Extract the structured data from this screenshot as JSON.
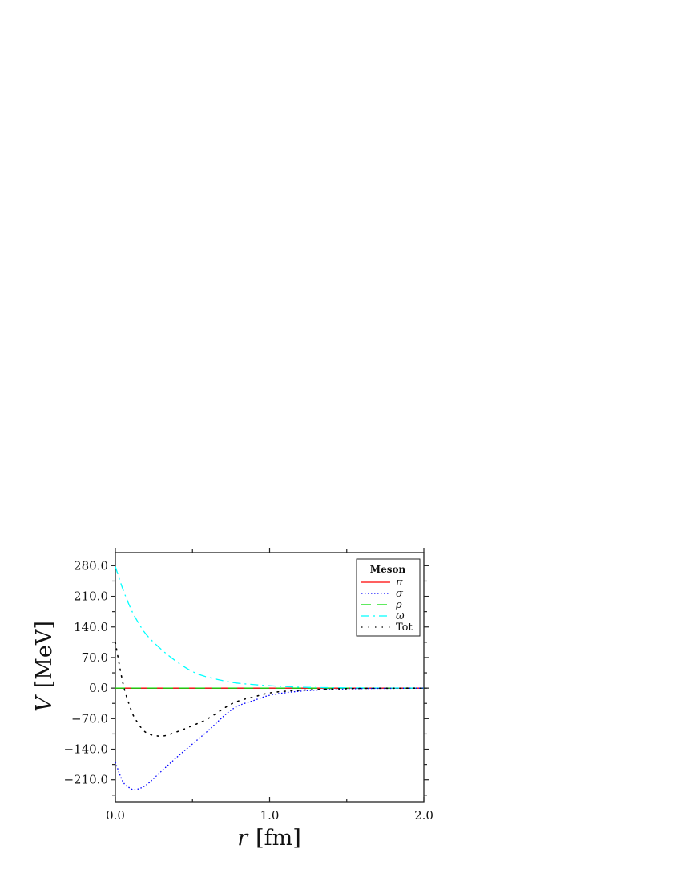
{
  "chart_data": {
    "type": "line",
    "title": "",
    "xlabel": "r [fm]",
    "xlabel_var": "r",
    "xlabel_unit": "[fm]",
    "ylabel": "V [MeV]",
    "ylabel_var": "V",
    "ylabel_unit": "[MeV]",
    "xlim": [
      0.0,
      2.0
    ],
    "ylim": [
      -260,
      310
    ],
    "xticks": [
      0.0,
      1.0,
      2.0
    ],
    "xtick_labels": [
      "0.0",
      "1.0",
      "2.0"
    ],
    "xminor": [
      0.5,
      1.5
    ],
    "yticks": [
      280,
      210,
      140,
      70,
      0,
      -70,
      -140,
      -210
    ],
    "ytick_labels": [
      "280.0",
      "210.0",
      "140.0",
      "70.0",
      "0.0",
      "−70.0",
      "−140.0",
      "−210.0"
    ],
    "grid": false,
    "legend_title": "Meson",
    "legend_position": "upper right",
    "zero_line": true,
    "x": [
      0.0,
      0.05,
      0.1,
      0.135,
      0.2,
      0.3,
      0.4,
      0.5,
      0.6,
      0.76,
      0.9,
      1.02,
      1.2,
      1.4,
      1.6,
      1.8,
      2.0
    ],
    "series": [
      {
        "name": "π",
        "key": "pi",
        "color": "#ff0000",
        "dash": "",
        "values": [
          0,
          0,
          0,
          0,
          0,
          0,
          0,
          0,
          0,
          0,
          0,
          0,
          0,
          0,
          0,
          0,
          0
        ]
      },
      {
        "name": "σ",
        "key": "sigma",
        "color": "#0000ff",
        "dash": "1.5,2.5",
        "values": [
          -170,
          -215,
          -230,
          -232,
          -222,
          -190,
          -158,
          -128,
          -98,
          -48,
          -28,
          -15,
          -7,
          -3,
          -1,
          -0.5,
          0
        ]
      },
      {
        "name": "ρ",
        "key": "rho",
        "color": "#00dd00",
        "dash": "12,8",
        "values": [
          0,
          0,
          0,
          0,
          0,
          0,
          0,
          0,
          0,
          0,
          0,
          0,
          0,
          0,
          0,
          0,
          0
        ]
      },
      {
        "name": "ω",
        "key": "omega",
        "color": "#00ffff",
        "dash": "10,5,2,5",
        "values": [
          278,
          225,
          182,
          158,
          123,
          88,
          60,
          38,
          25,
          13,
          8,
          5,
          2,
          1,
          0.4,
          0.2,
          0
        ]
      },
      {
        "name": "Tot",
        "key": "tot",
        "color": "#000000",
        "dash": "1.5,7",
        "values": [
          105,
          10,
          -48,
          -74,
          -102,
          -110,
          -100,
          -86,
          -70,
          -35,
          -20,
          -10,
          -5,
          -2,
          -0.6,
          -0.3,
          0
        ]
      }
    ]
  }
}
